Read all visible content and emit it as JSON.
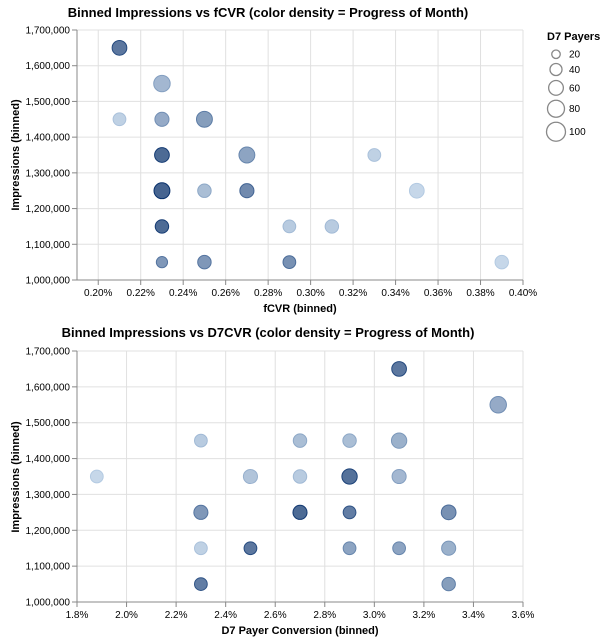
{
  "legend": {
    "title": "D7 Payers",
    "entries": [
      {
        "label": "20",
        "value": 20
      },
      {
        "label": "40",
        "value": 40
      },
      {
        "label": "60",
        "value": 60
      },
      {
        "label": "80",
        "value": 80
      },
      {
        "label": "100",
        "value": 100
      }
    ]
  },
  "colors": {
    "light": "#c6dbef",
    "dark": "#08306b"
  },
  "chart_data": [
    {
      "type": "scatter",
      "title": "Binned Impressions vs fCVR (color density = Progress of Month)",
      "xlabel": "fCVR (binned)",
      "ylabel": "Impressions (binned)",
      "xlim": [
        0.0019,
        0.004
      ],
      "ylim": [
        1000000,
        1700000
      ],
      "x_ticks": [
        {
          "value": 0.002,
          "label": "0.20%"
        },
        {
          "value": 0.0022,
          "label": "0.22%"
        },
        {
          "value": 0.0024,
          "label": "0.24%"
        },
        {
          "value": 0.0026,
          "label": "0.26%"
        },
        {
          "value": 0.0028,
          "label": "0.28%"
        },
        {
          "value": 0.003,
          "label": "0.30%"
        },
        {
          "value": 0.0032,
          "label": "0.32%"
        },
        {
          "value": 0.0034,
          "label": "0.34%"
        },
        {
          "value": 0.0036,
          "label": "0.36%"
        },
        {
          "value": 0.0038,
          "label": "0.38%"
        },
        {
          "value": 0.004,
          "label": "0.40%"
        }
      ],
      "y_ticks": [
        {
          "value": 1000000,
          "label": "1,000,000"
        },
        {
          "value": 1100000,
          "label": "1,100,000"
        },
        {
          "value": 1200000,
          "label": "1,200,000"
        },
        {
          "value": 1300000,
          "label": "1,300,000"
        },
        {
          "value": 1400000,
          "label": "1,400,000"
        },
        {
          "value": 1500000,
          "label": "1,500,000"
        },
        {
          "value": 1600000,
          "label": "1,600,000"
        },
        {
          "value": 1700000,
          "label": "1,700,000"
        }
      ],
      "grid": true,
      "points": [
        {
          "x": 0.0021,
          "y": 1650000,
          "size": 60,
          "density": 0.85
        },
        {
          "x": 0.0023,
          "y": 1550000,
          "size": 75,
          "density": 0.35
        },
        {
          "x": 0.0021,
          "y": 1450000,
          "size": 45,
          "density": 0.15
        },
        {
          "x": 0.0023,
          "y": 1450000,
          "size": 55,
          "density": 0.45
        },
        {
          "x": 0.0025,
          "y": 1450000,
          "size": 70,
          "density": 0.55
        },
        {
          "x": 0.0023,
          "y": 1350000,
          "size": 60,
          "density": 0.95
        },
        {
          "x": 0.0027,
          "y": 1350000,
          "size": 70,
          "density": 0.5
        },
        {
          "x": 0.0033,
          "y": 1350000,
          "size": 45,
          "density": 0.15
        },
        {
          "x": 0.0023,
          "y": 1250000,
          "size": 70,
          "density": 1.0
        },
        {
          "x": 0.0025,
          "y": 1250000,
          "size": 50,
          "density": 0.3
        },
        {
          "x": 0.0027,
          "y": 1250000,
          "size": 55,
          "density": 0.7
        },
        {
          "x": 0.0035,
          "y": 1250000,
          "size": 60,
          "density": 0.1
        },
        {
          "x": 0.0023,
          "y": 1150000,
          "size": 50,
          "density": 0.95
        },
        {
          "x": 0.0029,
          "y": 1150000,
          "size": 45,
          "density": 0.2
        },
        {
          "x": 0.0031,
          "y": 1150000,
          "size": 50,
          "density": 0.2
        },
        {
          "x": 0.0023,
          "y": 1050000,
          "size": 35,
          "density": 0.6
        },
        {
          "x": 0.0025,
          "y": 1050000,
          "size": 50,
          "density": 0.6
        },
        {
          "x": 0.0029,
          "y": 1050000,
          "size": 45,
          "density": 0.65
        },
        {
          "x": 0.0039,
          "y": 1050000,
          "size": 50,
          "density": 0.1
        }
      ]
    },
    {
      "type": "scatter",
      "title": "Binned Impressions vs D7CVR (color density = Progress of Month)",
      "xlabel": "D7 Payer Conversion (binned)",
      "ylabel": "Impressions (binned)",
      "xlim": [
        0.018,
        0.036
      ],
      "ylim": [
        1000000,
        1700000
      ],
      "x_ticks": [
        {
          "value": 0.018,
          "label": "1.8%"
        },
        {
          "value": 0.02,
          "label": "2.0%"
        },
        {
          "value": 0.022,
          "label": "2.2%"
        },
        {
          "value": 0.024,
          "label": "2.4%"
        },
        {
          "value": 0.026,
          "label": "2.6%"
        },
        {
          "value": 0.028,
          "label": "2.8%"
        },
        {
          "value": 0.03,
          "label": "3.0%"
        },
        {
          "value": 0.032,
          "label": "3.2%"
        },
        {
          "value": 0.034,
          "label": "3.4%"
        },
        {
          "value": 0.036,
          "label": "3.6%"
        }
      ],
      "y_ticks": [
        {
          "value": 1000000,
          "label": "1,000,000"
        },
        {
          "value": 1100000,
          "label": "1,100,000"
        },
        {
          "value": 1200000,
          "label": "1,200,000"
        },
        {
          "value": 1300000,
          "label": "1,300,000"
        },
        {
          "value": 1400000,
          "label": "1,400,000"
        },
        {
          "value": 1500000,
          "label": "1,500,000"
        },
        {
          "value": 1600000,
          "label": "1,600,000"
        },
        {
          "value": 1700000,
          "label": "1,700,000"
        }
      ],
      "grid": true,
      "points": [
        {
          "x": 0.031,
          "y": 1650000,
          "size": 60,
          "density": 0.85
        },
        {
          "x": 0.035,
          "y": 1550000,
          "size": 75,
          "density": 0.45
        },
        {
          "x": 0.023,
          "y": 1450000,
          "size": 45,
          "density": 0.2
        },
        {
          "x": 0.027,
          "y": 1450000,
          "size": 50,
          "density": 0.3
        },
        {
          "x": 0.029,
          "y": 1450000,
          "size": 50,
          "density": 0.3
        },
        {
          "x": 0.031,
          "y": 1450000,
          "size": 65,
          "density": 0.4
        },
        {
          "x": 0.0188,
          "y": 1350000,
          "size": 45,
          "density": 0.1
        },
        {
          "x": 0.025,
          "y": 1350000,
          "size": 55,
          "density": 0.25
        },
        {
          "x": 0.027,
          "y": 1350000,
          "size": 50,
          "density": 0.2
        },
        {
          "x": 0.029,
          "y": 1350000,
          "size": 65,
          "density": 0.9
        },
        {
          "x": 0.031,
          "y": 1350000,
          "size": 55,
          "density": 0.35
        },
        {
          "x": 0.023,
          "y": 1250000,
          "size": 55,
          "density": 0.6
        },
        {
          "x": 0.027,
          "y": 1250000,
          "size": 55,
          "density": 0.95
        },
        {
          "x": 0.029,
          "y": 1250000,
          "size": 45,
          "density": 0.8
        },
        {
          "x": 0.033,
          "y": 1250000,
          "size": 60,
          "density": 0.65
        },
        {
          "x": 0.023,
          "y": 1150000,
          "size": 45,
          "density": 0.15
        },
        {
          "x": 0.025,
          "y": 1150000,
          "size": 45,
          "density": 0.85
        },
        {
          "x": 0.029,
          "y": 1150000,
          "size": 45,
          "density": 0.5
        },
        {
          "x": 0.031,
          "y": 1150000,
          "size": 45,
          "density": 0.5
        },
        {
          "x": 0.033,
          "y": 1150000,
          "size": 55,
          "density": 0.4
        },
        {
          "x": 0.023,
          "y": 1050000,
          "size": 45,
          "density": 0.8
        },
        {
          "x": 0.033,
          "y": 1050000,
          "size": 50,
          "density": 0.55
        }
      ]
    }
  ]
}
